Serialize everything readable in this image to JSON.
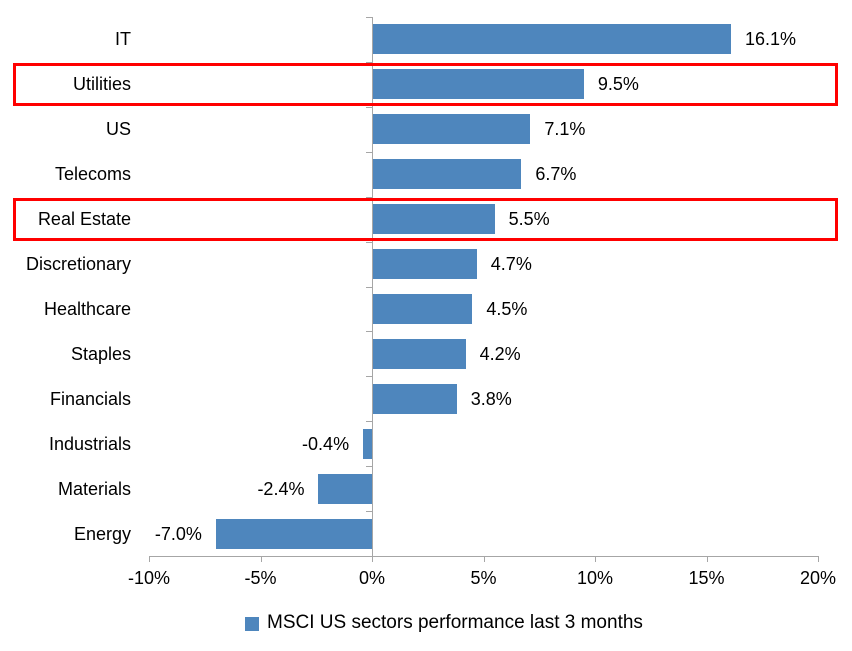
{
  "chart_data": {
    "type": "bar",
    "orientation": "horizontal",
    "title": "",
    "categories": [
      "IT",
      "Utilities",
      "US",
      "Telecoms",
      "Real Estate",
      "Discretionary",
      "Healthcare",
      "Staples",
      "Financials",
      "Industrials",
      "Materials",
      "Energy"
    ],
    "values": [
      16.1,
      9.5,
      7.1,
      6.7,
      5.5,
      4.7,
      4.5,
      4.2,
      3.8,
      -0.4,
      -2.4,
      -7.0
    ],
    "value_labels": [
      "16.1%",
      "9.5%",
      "7.1%",
      "6.7%",
      "5.5%",
      "4.7%",
      "4.5%",
      "4.2%",
      "3.8%",
      "-0.4%",
      "-2.4%",
      "-7.0%"
    ],
    "highlighted_categories": [
      "Utilities",
      "Real Estate"
    ],
    "x_axis": {
      "min": -10,
      "max": 20,
      "tick_values": [
        -10,
        -5,
        0,
        5,
        10,
        15,
        20
      ],
      "tick_labels": [
        "-10%",
        "-5%",
        "0%",
        "5%",
        "10%",
        "15%",
        "20%"
      ]
    },
    "grid": false,
    "legend": {
      "position": "bottom",
      "marker": "square",
      "label": "MSCI US sectors performance last 3 months"
    },
    "colors": {
      "bar": "#4e86bd",
      "highlight_box": "#ff0000",
      "axis": "#a6a6a6",
      "text": "#000000"
    }
  }
}
